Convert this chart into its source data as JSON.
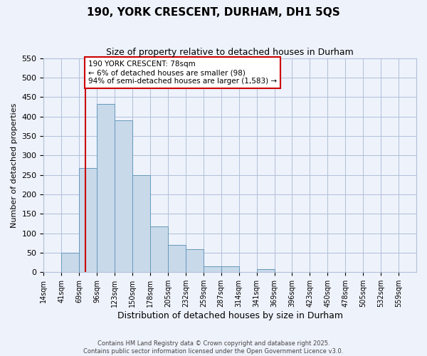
{
  "title": "190, YORK CRESCENT, DURHAM, DH1 5QS",
  "subtitle": "Size of property relative to detached houses in Durham",
  "xlabel": "Distribution of detached houses by size in Durham",
  "ylabel": "Number of detached properties",
  "bin_labels": [
    "14sqm",
    "41sqm",
    "69sqm",
    "96sqm",
    "123sqm",
    "150sqm",
    "178sqm",
    "205sqm",
    "232sqm",
    "259sqm",
    "287sqm",
    "314sqm",
    "341sqm",
    "369sqm",
    "396sqm",
    "423sqm",
    "450sqm",
    "478sqm",
    "505sqm",
    "532sqm",
    "559sqm"
  ],
  "bar_values": [
    0,
    50,
    267,
    433,
    390,
    250,
    118,
    70,
    60,
    15,
    15,
    0,
    8,
    0,
    0,
    0,
    0,
    0,
    0,
    0,
    0
  ],
  "bar_color": "#c8d9ea",
  "bar_edge_color": "#6699bb",
  "vline_x_index": 2,
  "ylim": [
    0,
    550
  ],
  "yticks": [
    0,
    50,
    100,
    150,
    200,
    250,
    300,
    350,
    400,
    450,
    500,
    550
  ],
  "annotation_title": "190 YORK CRESCENT: 78sqm",
  "annotation_line1": "← 6% of detached houses are smaller (98)",
  "annotation_line2": "94% of semi-detached houses are larger (1,583) →",
  "annotation_box_color": "#ffffff",
  "annotation_box_edge": "#cc0000",
  "vline_color": "#cc0000",
  "footer_line1": "Contains HM Land Registry data © Crown copyright and database right 2025.",
  "footer_line2": "Contains public sector information licensed under the Open Government Licence v3.0.",
  "background_color": "#eef2fb",
  "grid_color": "#b0c0d8",
  "title_fontsize": 11,
  "subtitle_fontsize": 9,
  "xlabel_fontsize": 9,
  "ylabel_fontsize": 8,
  "tick_fontsize": 7,
  "footer_fontsize": 6
}
